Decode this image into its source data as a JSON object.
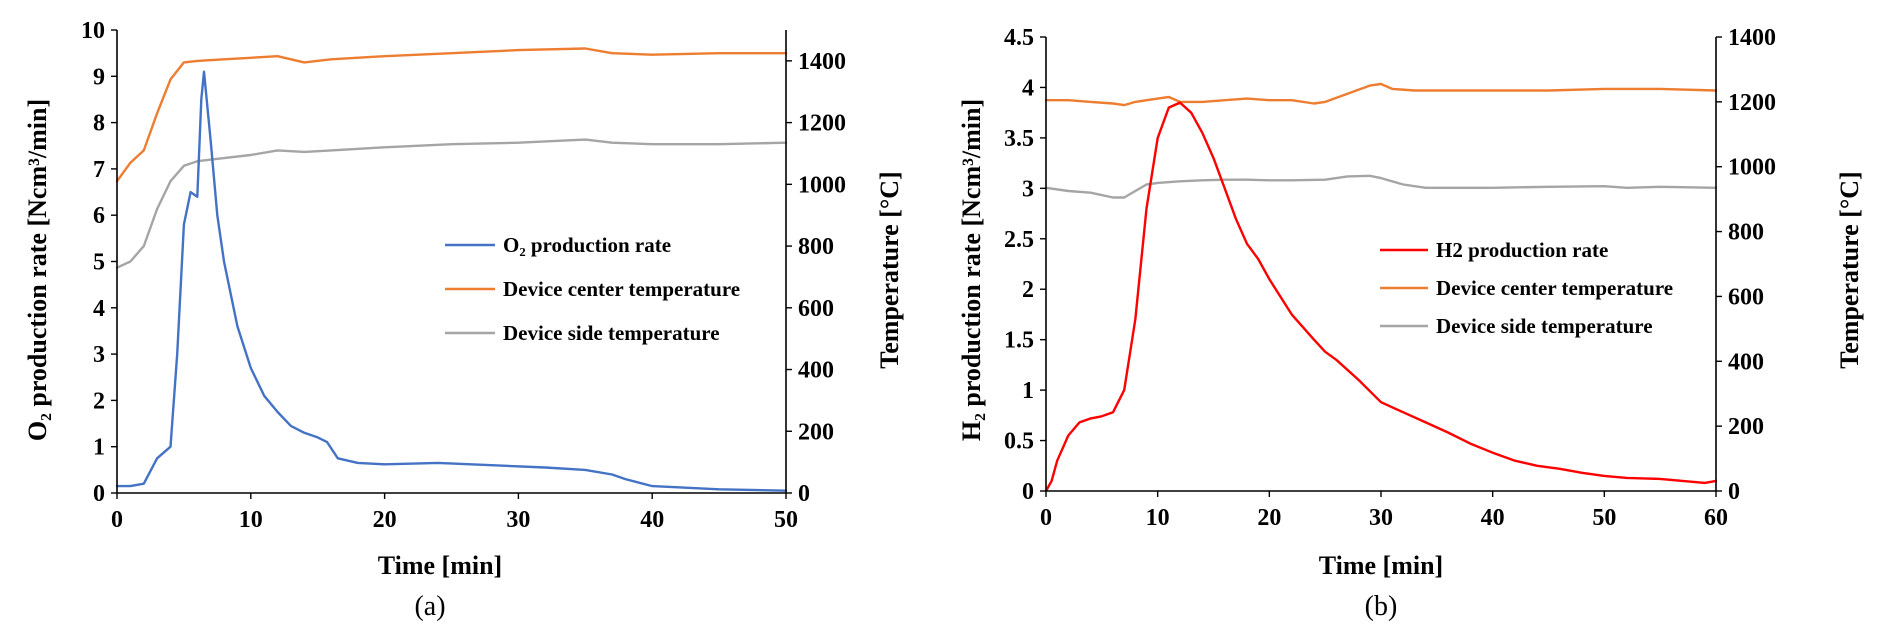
{
  "chart_data": [
    {
      "type": "line",
      "caption": "(a)",
      "xlabel": "Time [min]",
      "ylabel_left": "O₂ production rate [Ncm³/min]",
      "ylabel_right": "Temperature [°C]",
      "xlim": [
        0,
        50
      ],
      "ylim_left": [
        0,
        10
      ],
      "ylim_right": [
        0,
        1500
      ],
      "xticks": [
        0,
        10,
        20,
        30,
        40,
        50
      ],
      "yticks_left": [
        0,
        1,
        2,
        3,
        4,
        5,
        6,
        7,
        8,
        9,
        10
      ],
      "yticks_right": [
        0,
        200,
        400,
        600,
        800,
        1000,
        1200,
        1400
      ],
      "grid": false,
      "legend_position": "center-right",
      "series": [
        {
          "name": "O₂ production rate",
          "axis": "left",
          "color": "#4472C4",
          "points": [
            [
              0,
              0.15
            ],
            [
              1,
              0.15
            ],
            [
              2,
              0.2
            ],
            [
              3,
              0.75
            ],
            [
              4,
              1.0
            ],
            [
              4.5,
              3.0
            ],
            [
              5,
              5.8
            ],
            [
              5.5,
              6.5
            ],
            [
              6,
              6.4
            ],
            [
              6.3,
              8.5
            ],
            [
              6.5,
              9.1
            ],
            [
              7,
              7.6
            ],
            [
              7.5,
              6.0
            ],
            [
              8,
              5.0
            ],
            [
              9,
              3.6
            ],
            [
              10,
              2.7
            ],
            [
              11,
              2.1
            ],
            [
              12,
              1.75
            ],
            [
              13,
              1.45
            ],
            [
              14,
              1.3
            ],
            [
              15,
              1.2
            ],
            [
              15.7,
              1.1
            ],
            [
              16.5,
              0.75
            ],
            [
              18,
              0.65
            ],
            [
              20,
              0.62
            ],
            [
              24,
              0.65
            ],
            [
              28,
              0.6
            ],
            [
              32,
              0.55
            ],
            [
              35,
              0.5
            ],
            [
              37,
              0.4
            ],
            [
              38,
              0.3
            ],
            [
              40,
              0.15
            ],
            [
              45,
              0.08
            ],
            [
              50,
              0.05
            ]
          ]
        },
        {
          "name": "Device center temperature",
          "axis": "right",
          "color": "#ED7D31",
          "points": [
            [
              0,
              1010
            ],
            [
              1,
              1070
            ],
            [
              2,
              1110
            ],
            [
              3,
              1230
            ],
            [
              4,
              1340
            ],
            [
              5,
              1395
            ],
            [
              6,
              1400
            ],
            [
              8,
              1405
            ],
            [
              10,
              1410
            ],
            [
              12,
              1415
            ],
            [
              14,
              1395
            ],
            [
              16,
              1405
            ],
            [
              20,
              1415
            ],
            [
              25,
              1425
            ],
            [
              30,
              1435
            ],
            [
              35,
              1440
            ],
            [
              37,
              1425
            ],
            [
              40,
              1420
            ],
            [
              45,
              1425
            ],
            [
              50,
              1425
            ]
          ]
        },
        {
          "name": "Device side temperature",
          "axis": "right",
          "color": "#A5A5A5",
          "points": [
            [
              0,
              730
            ],
            [
              1,
              750
            ],
            [
              2,
              800
            ],
            [
              3,
              920
            ],
            [
              4,
              1010
            ],
            [
              5,
              1060
            ],
            [
              6,
              1075
            ],
            [
              8,
              1085
            ],
            [
              10,
              1095
            ],
            [
              12,
              1110
            ],
            [
              14,
              1105
            ],
            [
              16,
              1110
            ],
            [
              20,
              1120
            ],
            [
              25,
              1130
            ],
            [
              30,
              1135
            ],
            [
              35,
              1145
            ],
            [
              37,
              1135
            ],
            [
              40,
              1130
            ],
            [
              45,
              1130
            ],
            [
              50,
              1135
            ]
          ]
        }
      ]
    },
    {
      "type": "line",
      "caption": "(b)",
      "xlabel": "Time [min]",
      "ylabel_left": "H₂ production rate [Ncm³/min]",
      "ylabel_right": "Temperature [°C]",
      "xlim": [
        0,
        60
      ],
      "ylim_left": [
        0,
        4.5
      ],
      "ylim_right": [
        0,
        1400
      ],
      "xticks": [
        0,
        10,
        20,
        30,
        40,
        50,
        60
      ],
      "yticks_left": [
        0,
        0.5,
        1,
        1.5,
        2,
        2.5,
        3,
        3.5,
        4,
        4.5
      ],
      "yticks_right": [
        0,
        200,
        400,
        600,
        800,
        1000,
        1200,
        1400
      ],
      "grid": false,
      "legend_position": "center-right",
      "series": [
        {
          "name": "H2 production rate",
          "axis": "left",
          "color": "#FF0000",
          "points": [
            [
              0,
              0
            ],
            [
              0.5,
              0.1
            ],
            [
              1,
              0.3
            ],
            [
              2,
              0.55
            ],
            [
              3,
              0.68
            ],
            [
              4,
              0.72
            ],
            [
              5,
              0.74
            ],
            [
              6,
              0.78
            ],
            [
              7,
              1.0
            ],
            [
              8,
              1.7
            ],
            [
              9,
              2.8
            ],
            [
              10,
              3.5
            ],
            [
              11,
              3.8
            ],
            [
              12,
              3.85
            ],
            [
              13,
              3.75
            ],
            [
              14,
              3.55
            ],
            [
              15,
              3.3
            ],
            [
              16,
              3.0
            ],
            [
              17,
              2.7
            ],
            [
              18,
              2.45
            ],
            [
              19,
              2.3
            ],
            [
              20,
              2.1
            ],
            [
              22,
              1.75
            ],
            [
              24,
              1.5
            ],
            [
              25,
              1.38
            ],
            [
              26,
              1.3
            ],
            [
              28,
              1.1
            ],
            [
              30,
              0.88
            ],
            [
              32,
              0.78
            ],
            [
              34,
              0.68
            ],
            [
              36,
              0.58
            ],
            [
              38,
              0.47
            ],
            [
              40,
              0.38
            ],
            [
              42,
              0.3
            ],
            [
              44,
              0.25
            ],
            [
              46,
              0.22
            ],
            [
              48,
              0.18
            ],
            [
              50,
              0.15
            ],
            [
              52,
              0.13
            ],
            [
              55,
              0.12
            ],
            [
              57,
              0.1
            ],
            [
              59,
              0.08
            ],
            [
              60,
              0.1
            ]
          ]
        },
        {
          "name": "Device center temperature",
          "axis": "right",
          "color": "#ED7D31",
          "points": [
            [
              0,
              1205
            ],
            [
              2,
              1205
            ],
            [
              4,
              1200
            ],
            [
              6,
              1195
            ],
            [
              7,
              1190
            ],
            [
              8,
              1200
            ],
            [
              10,
              1210
            ],
            [
              11,
              1215
            ],
            [
              12,
              1200
            ],
            [
              14,
              1200
            ],
            [
              16,
              1205
            ],
            [
              18,
              1210
            ],
            [
              20,
              1205
            ],
            [
              22,
              1205
            ],
            [
              24,
              1195
            ],
            [
              25,
              1200
            ],
            [
              27,
              1225
            ],
            [
              29,
              1250
            ],
            [
              30,
              1255
            ],
            [
              31,
              1240
            ],
            [
              33,
              1235
            ],
            [
              36,
              1235
            ],
            [
              40,
              1235
            ],
            [
              45,
              1235
            ],
            [
              50,
              1240
            ],
            [
              55,
              1240
            ],
            [
              60,
              1235
            ]
          ]
        },
        {
          "name": "Device side temperature",
          "axis": "right",
          "color": "#A5A5A5",
          "points": [
            [
              0,
              935
            ],
            [
              2,
              925
            ],
            [
              4,
              920
            ],
            [
              6,
              905
            ],
            [
              7,
              905
            ],
            [
              8,
              925
            ],
            [
              9,
              945
            ],
            [
              10,
              950
            ],
            [
              12,
              955
            ],
            [
              14,
              958
            ],
            [
              16,
              960
            ],
            [
              18,
              960
            ],
            [
              20,
              958
            ],
            [
              22,
              958
            ],
            [
              25,
              960
            ],
            [
              27,
              970
            ],
            [
              29,
              972
            ],
            [
              30,
              965
            ],
            [
              32,
              945
            ],
            [
              34,
              935
            ],
            [
              36,
              935
            ],
            [
              40,
              935
            ],
            [
              45,
              938
            ],
            [
              50,
              940
            ],
            [
              52,
              935
            ],
            [
              55,
              938
            ],
            [
              60,
              935
            ]
          ]
        }
      ]
    }
  ]
}
